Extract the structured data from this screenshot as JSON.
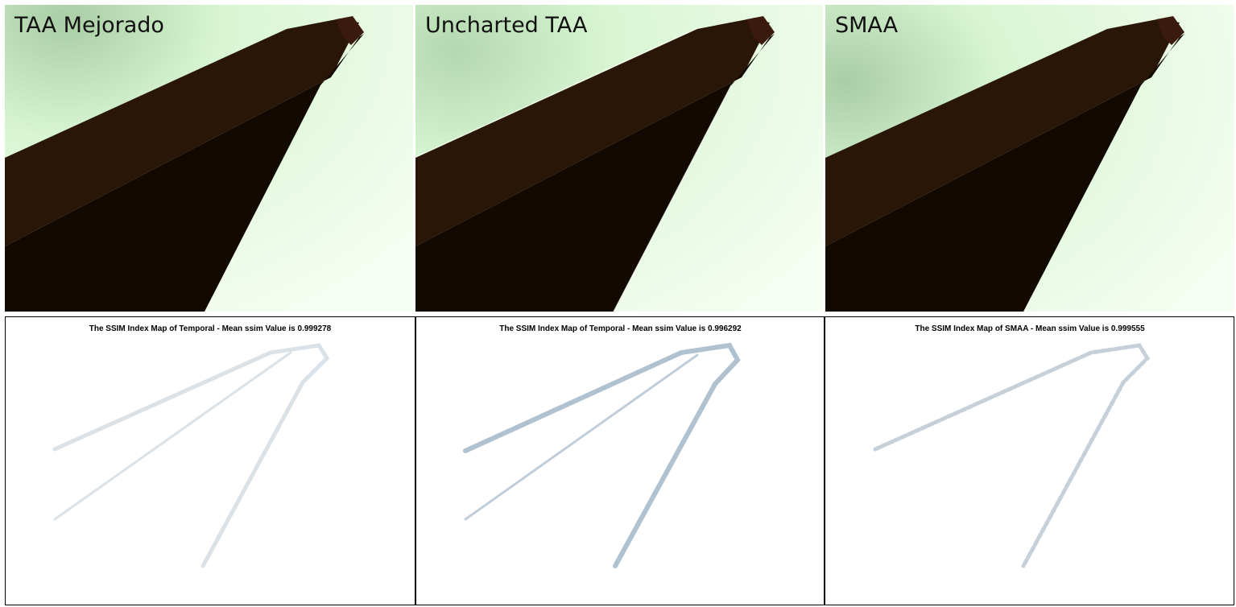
{
  "panels": [
    {
      "label": "TAA Mejorado",
      "ssim_title": "The SSIM Index Map of Temporal - Mean ssim Value is 0.999278",
      "mean_ssim": 0.999278
    },
    {
      "label": "Uncharted TAA",
      "ssim_title": "The SSIM Index Map of Temporal - Mean ssim Value is 0.996292",
      "mean_ssim": 0.996292
    },
    {
      "label": "SMAA",
      "ssim_title": "The SSIM Index Map of SMAA - Mean ssim Value is 0.999555",
      "mean_ssim": 0.999555
    }
  ],
  "colors": {
    "sky_light": "#f3fcee",
    "sky_mid": "#d8f6d2",
    "sky_dark": "#b4d8b0",
    "beam_top": "#2a1607",
    "beam_bottom": "#120a02",
    "beam_cap": "#3a1a0c",
    "ssim_edge": "#9fb6c8"
  }
}
